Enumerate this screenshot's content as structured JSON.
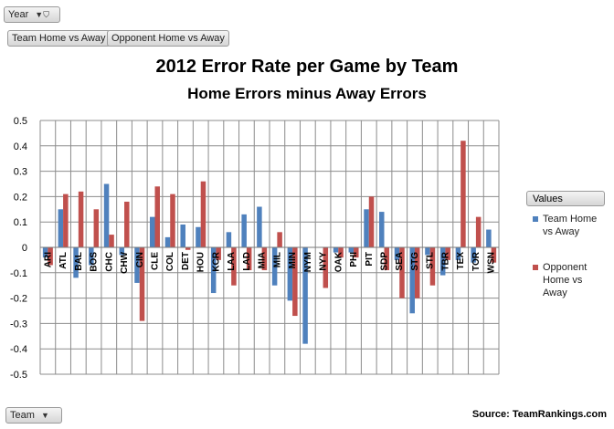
{
  "filters": {
    "year_label": "Year",
    "team_label": "Team",
    "tab_team": "Team Home vs Away",
    "tab_opponent": "Opponent Home vs Away"
  },
  "legend_title": "Values",
  "source": "Source: TeamRankings.com",
  "colors": {
    "team": "#4f81bd",
    "opponent": "#c0504d"
  },
  "chart_data": {
    "type": "bar",
    "title": "2012 Error Rate per Game by Team",
    "subtitle": "Home Errors minus Away Errors",
    "ylim": [
      -0.5,
      0.5
    ],
    "yticks": [
      "0.5",
      "0.4",
      "0.3",
      "0.2",
      "0.1",
      "0",
      "-0.1",
      "-0.2",
      "-0.3",
      "-0.4",
      "-0.5"
    ],
    "grid": true,
    "legend": "right",
    "categories": [
      "ARI",
      "ATL",
      "BAL",
      "BOS",
      "CHC",
      "CHW",
      "CIN",
      "CLE",
      "COL",
      "DET",
      "HOU",
      "KCR",
      "LAA",
      "LAD",
      "MIA",
      "MIL",
      "MIN",
      "NYM",
      "NYY",
      "OAK",
      "PHI",
      "PIT",
      "SDP",
      "SEA",
      "STG",
      "STL",
      "TBR",
      "TEX",
      "TOR",
      "WSN"
    ],
    "series": [
      {
        "name": "Team Home vs Away",
        "values": [
          -0.04,
          0.15,
          -0.12,
          -0.07,
          0.25,
          -0.03,
          -0.14,
          0.12,
          0.04,
          0.09,
          0.08,
          -0.18,
          0.06,
          0.13,
          0.16,
          -0.15,
          -0.21,
          -0.38,
          0.0,
          -0.02,
          -0.02,
          0.15,
          0.14,
          -0.05,
          -0.26,
          -0.03,
          -0.11,
          -0.05,
          -0.06,
          0.07
        ]
      },
      {
        "name": "Opponent Home vs Away",
        "values": [
          -0.07,
          0.21,
          0.22,
          0.15,
          0.05,
          0.18,
          -0.29,
          0.24,
          0.21,
          -0.01,
          0.26,
          -0.05,
          -0.15,
          -0.09,
          -0.09,
          0.06,
          -0.27,
          0.0,
          -0.16,
          -0.04,
          -0.04,
          0.2,
          -0.09,
          -0.2,
          -0.2,
          -0.15,
          -0.05,
          0.42,
          0.12,
          -0.06
        ]
      }
    ]
  }
}
